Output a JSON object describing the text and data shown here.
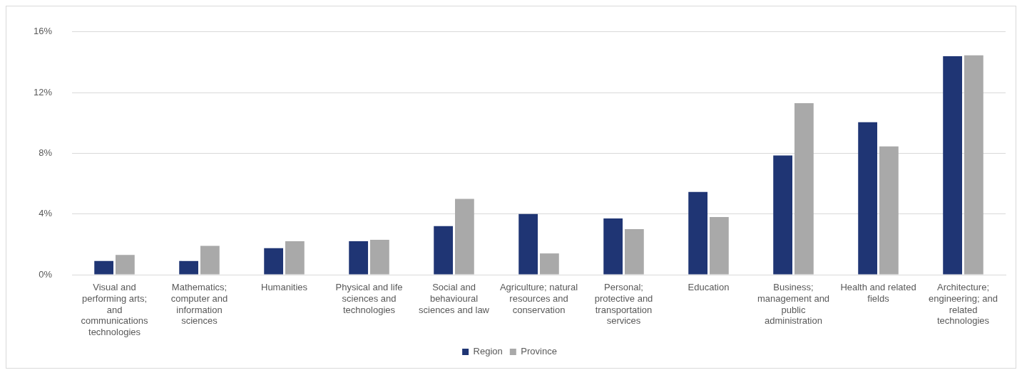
{
  "chart_data": {
    "type": "bar",
    "categories": [
      "Visual and performing arts; and communications technologies",
      "Mathematics; computer and information sciences",
      "Humanities",
      "Physical and life sciences and technologies",
      "Social and behavioural sciences and law",
      "Agriculture; natural resources and conservation",
      "Personal; protective and transportation services",
      "Education",
      "Business; management and public administration",
      "Health and related fields",
      "Architecture; engineering; and related technologies"
    ],
    "series": [
      {
        "name": "Region",
        "color": "#1f3574",
        "values": [
          0.9,
          0.9,
          1.75,
          2.2,
          3.2,
          4.0,
          3.7,
          5.45,
          7.85,
          10.05,
          14.4
        ]
      },
      {
        "name": "Province",
        "color": "#a9a9a9",
        "values": [
          1.3,
          1.9,
          2.2,
          2.3,
          5.0,
          1.4,
          3.0,
          3.8,
          11.3,
          8.45,
          14.45
        ]
      }
    ],
    "ylim": [
      0,
      16
    ],
    "yticks": [
      {
        "value": 0,
        "label": "0%"
      },
      {
        "value": 4,
        "label": "4%"
      },
      {
        "value": 8,
        "label": "8%"
      },
      {
        "value": 12,
        "label": "12%"
      },
      {
        "value": 16,
        "label": "16%"
      }
    ],
    "grid": "y",
    "legend": "bottom"
  }
}
